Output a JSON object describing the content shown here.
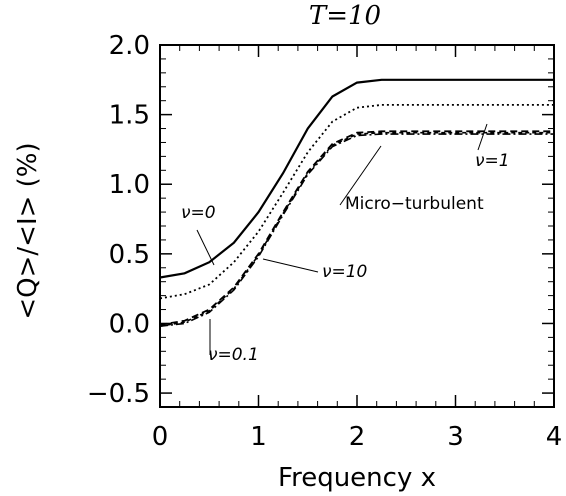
{
  "chart_data": {
    "type": "line",
    "title": "T=10",
    "xlabel": "Frequency x",
    "ylabel": "<Q>/<I> (%)",
    "xlim": [
      0,
      4
    ],
    "ylim": [
      -0.6,
      2.0
    ],
    "xticks": [
      "0",
      "1",
      "2",
      "3",
      "4"
    ],
    "yticks": [
      "−0.5",
      "0.0",
      "0.5",
      "1.0",
      "1.5",
      "2.0"
    ],
    "x": [
      0,
      0.25,
      0.5,
      0.75,
      1.0,
      1.25,
      1.5,
      1.75,
      2.0,
      2.25,
      2.5,
      3.0,
      3.5,
      4.0
    ],
    "series": [
      {
        "name": "ν=0",
        "style": "solid",
        "values": [
          0.33,
          0.36,
          0.44,
          0.58,
          0.8,
          1.08,
          1.4,
          1.63,
          1.73,
          1.75,
          1.75,
          1.75,
          1.75,
          1.75
        ]
      },
      {
        "name": "ν=1",
        "style": "dotted",
        "values": [
          0.18,
          0.21,
          0.28,
          0.44,
          0.66,
          0.94,
          1.23,
          1.45,
          1.55,
          1.57,
          1.57,
          1.57,
          1.57,
          1.57
        ]
      },
      {
        "name": "ν=10",
        "style": "dashed",
        "values": [
          -0.01,
          0.02,
          0.1,
          0.26,
          0.5,
          0.8,
          1.09,
          1.29,
          1.37,
          1.38,
          1.38,
          1.38,
          1.38,
          1.38
        ]
      },
      {
        "name": "ν=0.1",
        "style": "dashdot",
        "values": [
          -0.02,
          0.0,
          0.08,
          0.24,
          0.48,
          0.78,
          1.07,
          1.27,
          1.35,
          1.36,
          1.36,
          1.36,
          1.36,
          1.36
        ]
      },
      {
        "name": "Micro−turbulent",
        "style": "dashed-short",
        "values": [
          -0.02,
          0.01,
          0.09,
          0.25,
          0.49,
          0.79,
          1.08,
          1.28,
          1.36,
          1.37,
          1.37,
          1.37,
          1.37,
          1.37
        ]
      }
    ],
    "annotations": {
      "nu0": "ν=0",
      "nu1": "ν=1",
      "nu10": "ν=10",
      "nu01": "ν=0.1",
      "micro": "Micro−turbulent"
    }
  }
}
